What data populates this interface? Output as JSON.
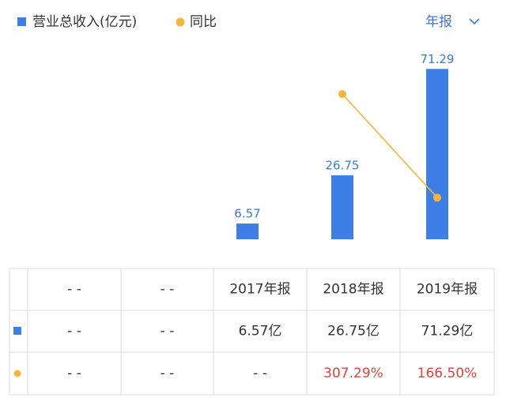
{
  "period_selector": "年报",
  "chart_data": {
    "type": "bar",
    "categories": [
      "- -",
      "- -",
      "2017年报",
      "2018年报",
      "2019年报"
    ],
    "series": [
      {
        "name": "营业总收入(亿元)",
        "type": "bar",
        "color": "#3d7fe6",
        "values": [
          null,
          null,
          6.57,
          26.75,
          71.29
        ]
      },
      {
        "name": "同比",
        "type": "line",
        "color": "#f3b53c",
        "axis": "y2",
        "values": [
          null,
          null,
          null,
          307.29,
          166.5
        ]
      }
    ],
    "ylim": [
      0,
      77
    ],
    "y2lim": [
      110,
      360
    ]
  },
  "table": {
    "rows": [
      [
        "- -",
        "- -",
        "6.57亿",
        "26.75亿",
        "71.29亿"
      ],
      [
        "- -",
        "- -",
        "- -",
        "307.29%",
        "166.50%"
      ]
    ]
  }
}
